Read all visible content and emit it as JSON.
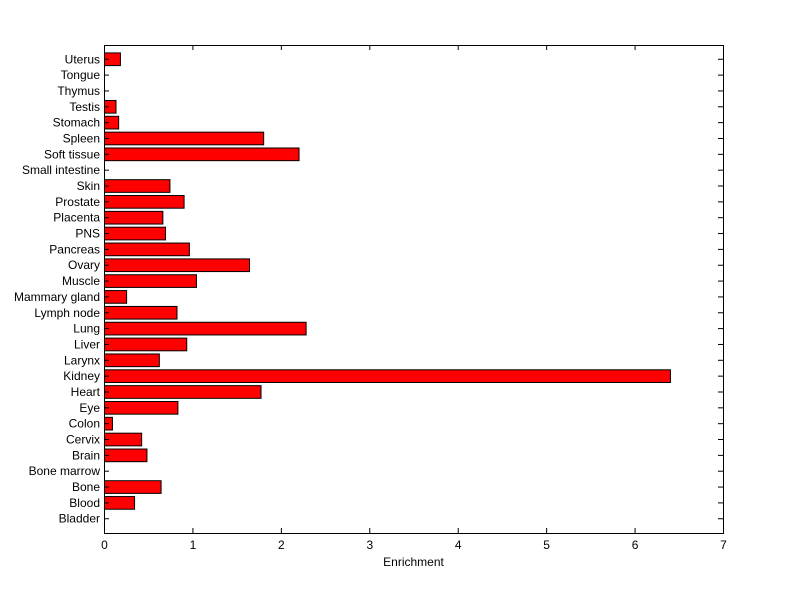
{
  "chart_data": {
    "type": "bar",
    "orientation": "horizontal",
    "title": "",
    "xlabel": "Enrichment",
    "ylabel": "",
    "xlim": [
      0,
      7
    ],
    "xticks": [
      "0",
      "1",
      "2",
      "3",
      "4",
      "5",
      "6",
      "7"
    ],
    "grid": false,
    "legend": "none",
    "bar_color": "#ff0000",
    "categories": [
      "Uterus",
      "Tongue",
      "Thymus",
      "Testis",
      "Stomach",
      "Spleen",
      "Soft tissue",
      "Small intestine",
      "Skin",
      "Prostate",
      "Placenta",
      "PNS",
      "Pancreas",
      "Ovary",
      "Muscle",
      "Mammary gland",
      "Lymph node",
      "Lung",
      "Liver",
      "Larynx",
      "Kidney",
      "Heart",
      "Eye",
      "Colon",
      "Cervix",
      "Brain",
      "Bone marrow",
      "Bone",
      "Blood",
      "Bladder"
    ],
    "values": [
      0.18,
      0,
      0,
      0.13,
      0.16,
      1.8,
      2.2,
      0,
      0.74,
      0.9,
      0.66,
      0.69,
      0.96,
      1.64,
      1.04,
      0.25,
      0.82,
      2.28,
      0.93,
      0.62,
      6.4,
      1.77,
      0.83,
      0.09,
      0.42,
      0.48,
      0,
      0.64,
      0.34,
      0
    ]
  }
}
